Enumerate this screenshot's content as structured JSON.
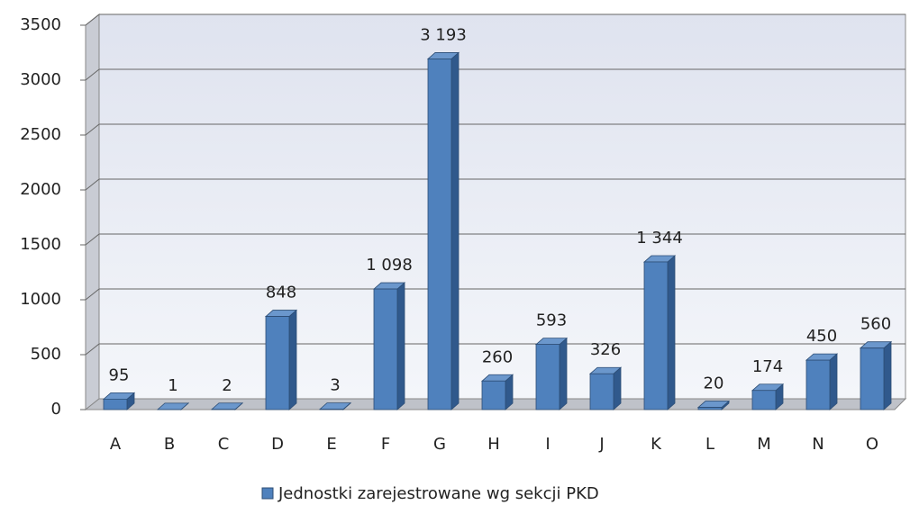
{
  "chart_data": {
    "type": "bar",
    "categories": [
      "A",
      "B",
      "C",
      "D",
      "E",
      "F",
      "G",
      "H",
      "I",
      "J",
      "K",
      "L",
      "M",
      "N",
      "O"
    ],
    "series": [
      {
        "name": "Jednostki zarejestrowane wg sekcji PKD",
        "color": "#4f81bd",
        "values": [
          95,
          1,
          2,
          848,
          3,
          1098,
          3193,
          260,
          593,
          326,
          1344,
          20,
          174,
          450,
          560
        ],
        "value_labels": [
          "95",
          "1",
          "2",
          "848",
          "3",
          "1 098",
          "3 193",
          "260",
          "593",
          "326",
          "1 344",
          "20",
          "174",
          "450",
          "560"
        ]
      }
    ],
    "ylim": [
      0,
      3500
    ],
    "yticks": [
      0,
      500,
      1000,
      1500,
      2000,
      2500,
      3000,
      3500
    ],
    "grid": true,
    "legend": "bottom"
  }
}
